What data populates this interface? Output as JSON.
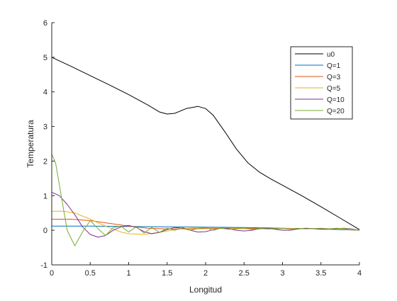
{
  "chart_data": {
    "type": "line",
    "title": "",
    "xlabel": "Longitud",
    "ylabel": "Temperatura",
    "xlim": [
      0,
      4
    ],
    "ylim": [
      -1,
      6
    ],
    "xticks": [
      0,
      0.5,
      1,
      1.5,
      2,
      2.5,
      3,
      3.5,
      4
    ],
    "xtick_labels": [
      "0",
      "0.5",
      "1",
      "1.5",
      "2",
      "2.5",
      "3",
      "3.5",
      "4"
    ],
    "yticks": [
      -1,
      0,
      1,
      2,
      3,
      4,
      5,
      6
    ],
    "ytick_labels": [
      "-1",
      "0",
      "1",
      "2",
      "3",
      "4",
      "5",
      "6"
    ],
    "grid": false,
    "legend_position": "top-right",
    "series": [
      {
        "name": "u0",
        "color": "#000000",
        "points": [
          [
            0,
            5.0
          ],
          [
            0.25,
            4.74
          ],
          [
            0.5,
            4.47
          ],
          [
            0.75,
            4.2
          ],
          [
            1.0,
            3.92
          ],
          [
            1.25,
            3.62
          ],
          [
            1.4,
            3.42
          ],
          [
            1.5,
            3.36
          ],
          [
            1.6,
            3.38
          ],
          [
            1.75,
            3.52
          ],
          [
            1.9,
            3.58
          ],
          [
            2.0,
            3.52
          ],
          [
            2.1,
            3.32
          ],
          [
            2.25,
            2.85
          ],
          [
            2.4,
            2.35
          ],
          [
            2.55,
            1.95
          ],
          [
            2.7,
            1.68
          ],
          [
            2.85,
            1.48
          ],
          [
            3.0,
            1.3
          ],
          [
            3.25,
            1.0
          ],
          [
            3.5,
            0.68
          ],
          [
            3.75,
            0.35
          ],
          [
            4.0,
            0.02
          ]
        ]
      },
      {
        "name": "Q=1",
        "color": "#0072BD",
        "points": [
          [
            0,
            0.12
          ],
          [
            0.5,
            0.12
          ],
          [
            1.0,
            0.11
          ],
          [
            1.5,
            0.1
          ],
          [
            2.0,
            0.09
          ],
          [
            2.5,
            0.08
          ],
          [
            3.0,
            0.06
          ],
          [
            3.5,
            0.04
          ],
          [
            4.0,
            0.0
          ]
        ]
      },
      {
        "name": "Q=3",
        "color": "#D95319",
        "points": [
          [
            0,
            0.32
          ],
          [
            0.25,
            0.32
          ],
          [
            0.5,
            0.28
          ],
          [
            0.75,
            0.2
          ],
          [
            1.0,
            0.12
          ],
          [
            1.25,
            0.06
          ],
          [
            1.5,
            0.04
          ],
          [
            1.75,
            0.04
          ],
          [
            2.0,
            0.05
          ],
          [
            2.25,
            0.06
          ],
          [
            2.5,
            0.06
          ],
          [
            2.75,
            0.05
          ],
          [
            3.0,
            0.05
          ],
          [
            3.25,
            0.05
          ],
          [
            3.5,
            0.05
          ],
          [
            3.75,
            0.04
          ],
          [
            4.0,
            0.0
          ]
        ]
      },
      {
        "name": "Q=5",
        "color": "#EDB120",
        "points": [
          [
            0,
            0.55
          ],
          [
            0.15,
            0.55
          ],
          [
            0.3,
            0.5
          ],
          [
            0.5,
            0.32
          ],
          [
            0.7,
            0.12
          ],
          [
            0.9,
            -0.05
          ],
          [
            1.0,
            -0.1
          ],
          [
            1.2,
            -0.12
          ],
          [
            1.4,
            -0.06
          ],
          [
            1.6,
            0.02
          ],
          [
            1.8,
            0.06
          ],
          [
            2.0,
            0.07
          ],
          [
            2.2,
            0.06
          ],
          [
            2.4,
            0.05
          ],
          [
            2.6,
            0.04
          ],
          [
            2.8,
            0.04
          ],
          [
            3.0,
            0.05
          ],
          [
            3.25,
            0.05
          ],
          [
            3.5,
            0.05
          ],
          [
            3.75,
            0.04
          ],
          [
            4.0,
            0.0
          ]
        ]
      },
      {
        "name": "Q=10",
        "color": "#7E2F8E",
        "points": [
          [
            0,
            1.1
          ],
          [
            0.1,
            1.0
          ],
          [
            0.2,
            0.75
          ],
          [
            0.3,
            0.45
          ],
          [
            0.4,
            0.1
          ],
          [
            0.5,
            -0.12
          ],
          [
            0.6,
            -0.2
          ],
          [
            0.7,
            -0.15
          ],
          [
            0.8,
            0.0
          ],
          [
            0.9,
            0.1
          ],
          [
            1.0,
            0.14
          ],
          [
            1.1,
            0.08
          ],
          [
            1.2,
            -0.04
          ],
          [
            1.3,
            -0.1
          ],
          [
            1.4,
            -0.06
          ],
          [
            1.5,
            0.02
          ],
          [
            1.6,
            0.08
          ],
          [
            1.7,
            0.06
          ],
          [
            1.8,
            0.0
          ],
          [
            1.9,
            -0.05
          ],
          [
            2.0,
            -0.04
          ],
          [
            2.1,
            0.02
          ],
          [
            2.2,
            0.06
          ],
          [
            2.3,
            0.05
          ],
          [
            2.4,
            0.0
          ],
          [
            2.5,
            -0.02
          ],
          [
            2.6,
            0.0
          ],
          [
            2.7,
            0.05
          ],
          [
            2.8,
            0.06
          ],
          [
            2.9,
            0.03
          ],
          [
            3.0,
            0.0
          ],
          [
            3.1,
            0.0
          ],
          [
            3.2,
            0.04
          ],
          [
            3.3,
            0.06
          ],
          [
            3.4,
            0.05
          ],
          [
            3.5,
            0.03
          ],
          [
            3.6,
            0.03
          ],
          [
            3.7,
            0.05
          ],
          [
            3.8,
            0.06
          ],
          [
            3.9,
            0.04
          ],
          [
            4.0,
            0.0
          ]
        ]
      },
      {
        "name": "Q=20",
        "color": "#77AC30",
        "points": [
          [
            0,
            2.2
          ],
          [
            0.05,
            1.95
          ],
          [
            0.1,
            1.3
          ],
          [
            0.2,
            0.0
          ],
          [
            0.3,
            -0.45
          ],
          [
            0.4,
            -0.05
          ],
          [
            0.5,
            0.28
          ],
          [
            0.6,
            0.05
          ],
          [
            0.7,
            -0.15
          ],
          [
            0.8,
            0.08
          ],
          [
            0.9,
            0.12
          ],
          [
            1.0,
            -0.05
          ],
          [
            1.1,
            0.1
          ],
          [
            1.2,
            -0.08
          ],
          [
            1.3,
            0.08
          ],
          [
            1.4,
            -0.06
          ],
          [
            1.5,
            0.06
          ],
          [
            1.6,
            0.0
          ],
          [
            1.7,
            0.08
          ],
          [
            1.8,
            0.0
          ],
          [
            1.9,
            0.05
          ],
          [
            2.0,
            0.08
          ],
          [
            2.1,
            0.0
          ],
          [
            2.2,
            0.06
          ],
          [
            2.3,
            0.03
          ],
          [
            2.4,
            0.04
          ],
          [
            2.5,
            0.07
          ],
          [
            2.6,
            0.02
          ],
          [
            2.7,
            0.06
          ],
          [
            2.8,
            0.04
          ],
          [
            2.9,
            0.04
          ],
          [
            3.0,
            0.06
          ],
          [
            3.1,
            0.03
          ],
          [
            3.2,
            0.06
          ],
          [
            3.3,
            0.04
          ],
          [
            3.4,
            0.05
          ],
          [
            3.5,
            0.06
          ],
          [
            3.6,
            0.04
          ],
          [
            3.7,
            0.06
          ],
          [
            3.8,
            0.05
          ],
          [
            3.9,
            0.03
          ],
          [
            4.0,
            0.0
          ]
        ]
      }
    ]
  }
}
